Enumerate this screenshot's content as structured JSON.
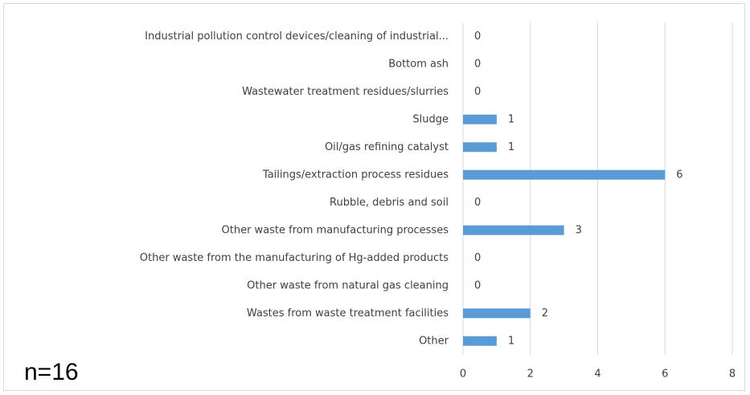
{
  "chart_data": {
    "type": "bar",
    "orientation": "horizontal",
    "categories": [
      "Industrial pollution control devices/cleaning of industrial...",
      "Bottom ash",
      "Wastewater treatment residues/slurries",
      "Sludge",
      "Oil/gas refining catalyst",
      "Tailings/extraction process residues",
      "Rubble, debris and soil",
      "Other waste from manufacturing processes",
      "Other waste from the manufacturing of Hg-added products",
      "Other waste from natural gas cleaning",
      "Wastes from waste treatment facilities",
      "Other"
    ],
    "values": [
      0,
      0,
      0,
      1,
      1,
      6,
      0,
      3,
      0,
      0,
      2,
      1
    ],
    "color": "#5b9bd5",
    "xlim": [
      0,
      8
    ],
    "xticks": [
      0,
      2,
      4,
      6,
      8
    ],
    "grid": true,
    "annotation": "n=16"
  }
}
